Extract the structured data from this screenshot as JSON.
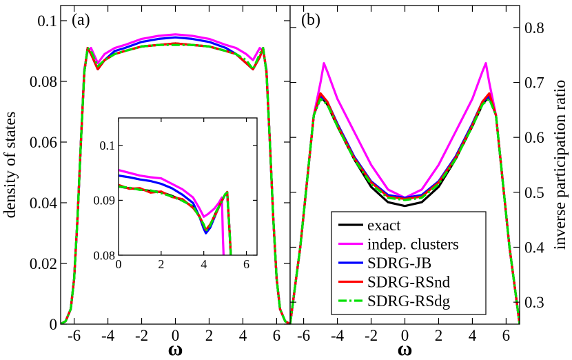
{
  "chart_data": [
    {
      "panel": "(a)",
      "type": "line",
      "xlabel": "ω",
      "ylabel": "density of states",
      "xlim": [
        -6.8,
        6.8
      ],
      "ylim": [
        0,
        0.105
      ],
      "xticks": [
        -6,
        -4,
        -2,
        0,
        2,
        4,
        6
      ],
      "xtick_labels": [
        "-6",
        "-4",
        "-2",
        "0",
        "2",
        "4",
        "6"
      ],
      "yticks": [
        0,
        0.02,
        0.04,
        0.06,
        0.08,
        0.1
      ],
      "ytick_labels": [
        "0",
        "0.02",
        "0.04",
        "0.06",
        "0.08",
        "0.1"
      ],
      "legend": "none",
      "series": [
        {
          "name": "exact",
          "color": "#000000",
          "dash": "solid",
          "x": [
            -6.8,
            -6.5,
            -6.2,
            -6.0,
            -5.8,
            -5.6,
            -5.4,
            -5.2,
            -5.0,
            -4.6,
            -4.2,
            -3.6,
            -3.0,
            -2.0,
            -1.0,
            0,
            1.0,
            2.0,
            3.0,
            3.6,
            4.2,
            4.6,
            5.0,
            5.2,
            5.4,
            5.6,
            5.8,
            6.0,
            6.2,
            6.5,
            6.8
          ],
          "y": [
            0,
            0.001,
            0.005,
            0.015,
            0.035,
            0.06,
            0.083,
            0.091,
            0.089,
            0.084,
            0.087,
            0.089,
            0.09,
            0.0915,
            0.092,
            0.0925,
            0.092,
            0.0915,
            0.09,
            0.089,
            0.086,
            0.084,
            0.088,
            0.091,
            0.083,
            0.06,
            0.035,
            0.015,
            0.005,
            0.001,
            0
          ]
        },
        {
          "name": "indep. clusters",
          "color": "#ff00ff",
          "dash": "solid",
          "x": [
            -6.8,
            -6.5,
            -6.2,
            -6.0,
            -5.8,
            -5.6,
            -5.4,
            -5.2,
            -5.0,
            -4.6,
            -4.2,
            -3.6,
            -3.0,
            -2.0,
            -1.0,
            0,
            1.0,
            2.0,
            3.0,
            3.6,
            4.2,
            4.6,
            5.0,
            5.2,
            5.4,
            5.6,
            5.8,
            6.0,
            6.2,
            6.5,
            6.8
          ],
          "y": [
            0,
            0.001,
            0.005,
            0.015,
            0.035,
            0.06,
            0.084,
            0.09,
            0.091,
            0.086,
            0.089,
            0.091,
            0.092,
            0.094,
            0.095,
            0.0955,
            0.095,
            0.094,
            0.092,
            0.091,
            0.089,
            0.087,
            0.091,
            0.09,
            0.084,
            0.06,
            0.035,
            0.015,
            0.005,
            0.001,
            0
          ]
        },
        {
          "name": "SDRG-JB",
          "color": "#0000ff",
          "dash": "solid",
          "x": [
            -6.8,
            -6.5,
            -6.2,
            -6.0,
            -5.8,
            -5.6,
            -5.4,
            -5.2,
            -5.0,
            -4.6,
            -4.2,
            -3.6,
            -3.0,
            -2.0,
            -1.0,
            0,
            1.0,
            2.0,
            3.0,
            3.6,
            4.2,
            4.6,
            5.0,
            5.2,
            5.4,
            5.6,
            5.8,
            6.0,
            6.2,
            6.5,
            6.8
          ],
          "y": [
            0,
            0.001,
            0.005,
            0.015,
            0.035,
            0.06,
            0.083,
            0.091,
            0.089,
            0.084,
            0.087,
            0.09,
            0.091,
            0.093,
            0.094,
            0.0945,
            0.094,
            0.093,
            0.091,
            0.089,
            0.086,
            0.084,
            0.088,
            0.091,
            0.083,
            0.06,
            0.035,
            0.015,
            0.005,
            0.001,
            0
          ]
        },
        {
          "name": "SDRG-RSnd",
          "color": "#ff0000",
          "dash": "solid",
          "x": [
            -6.8,
            -6.5,
            -6.2,
            -6.0,
            -5.8,
            -5.6,
            -5.4,
            -5.2,
            -5.0,
            -4.6,
            -4.2,
            -3.6,
            -3.0,
            -2.0,
            -1.0,
            0,
            1.0,
            2.0,
            3.0,
            3.6,
            4.2,
            4.6,
            5.0,
            5.2,
            5.4,
            5.6,
            5.8,
            6.0,
            6.2,
            6.5,
            6.8
          ],
          "y": [
            0,
            0.001,
            0.005,
            0.015,
            0.035,
            0.06,
            0.083,
            0.091,
            0.089,
            0.084,
            0.087,
            0.089,
            0.09,
            0.0915,
            0.092,
            0.0925,
            0.092,
            0.0915,
            0.09,
            0.089,
            0.086,
            0.084,
            0.088,
            0.091,
            0.083,
            0.06,
            0.035,
            0.015,
            0.005,
            0.001,
            0
          ]
        },
        {
          "name": "SDRG-RSdg",
          "color": "#00e000",
          "dash": "dashdot",
          "x": [
            -6.8,
            -6.5,
            -6.2,
            -6.0,
            -5.8,
            -5.6,
            -5.4,
            -5.2,
            -5.0,
            -4.6,
            -4.2,
            -3.6,
            -3.0,
            -2.0,
            -1.0,
            0,
            1.0,
            2.0,
            3.0,
            3.6,
            4.2,
            4.6,
            5.0,
            5.2,
            5.4,
            5.6,
            5.8,
            6.0,
            6.2,
            6.5,
            6.8
          ],
          "y": [
            0,
            0.001,
            0.005,
            0.015,
            0.035,
            0.06,
            0.083,
            0.091,
            0.09,
            0.085,
            0.087,
            0.089,
            0.09,
            0.0915,
            0.092,
            0.092,
            0.092,
            0.0915,
            0.09,
            0.089,
            0.087,
            0.084,
            0.089,
            0.091,
            0.083,
            0.06,
            0.035,
            0.015,
            0.005,
            0.001,
            0
          ]
        }
      ]
    },
    {
      "panel": "inset",
      "type": "line",
      "xlabel": "",
      "ylabel": "",
      "xlim": [
        0,
        6.5
      ],
      "ylim": [
        0.08,
        0.105
      ],
      "xticks": [
        0,
        2,
        4,
        6
      ],
      "xtick_labels": [
        "0",
        "2",
        "4",
        "6"
      ],
      "yticks": [
        0.08,
        0.09,
        0.1
      ],
      "ytick_labels": [
        "0.08",
        "0.09",
        "0.1"
      ],
      "series": [
        {
          "name": "exact",
          "color": "#000000",
          "dash": "solid",
          "x": [
            0,
            0.5,
            1.0,
            1.5,
            2.0,
            2.5,
            3.0,
            3.5,
            3.8,
            4.0,
            4.1,
            4.3,
            4.6,
            4.8,
            5.0,
            5.1,
            5.2,
            5.3
          ],
          "y": [
            0.0925,
            0.0922,
            0.092,
            0.0917,
            0.0915,
            0.0908,
            0.09,
            0.0888,
            0.087,
            0.0855,
            0.0845,
            0.0855,
            0.088,
            0.0895,
            0.091,
            0.0915,
            0.085,
            0.0778
          ]
        },
        {
          "name": "indep. clusters",
          "color": "#ff00ff",
          "dash": "solid",
          "x": [
            0,
            0.5,
            1.0,
            1.5,
            2.0,
            2.5,
            3.0,
            3.5,
            3.8,
            4.0,
            4.2,
            4.5,
            4.7,
            4.85,
            4.9,
            4.95
          ],
          "y": [
            0.0955,
            0.095,
            0.0945,
            0.0942,
            0.094,
            0.093,
            0.092,
            0.0905,
            0.0885,
            0.087,
            0.0875,
            0.0885,
            0.0895,
            0.0905,
            0.083,
            0.0778
          ]
        },
        {
          "name": "SDRG-JB",
          "color": "#0000ff",
          "dash": "solid",
          "x": [
            0,
            0.5,
            1.0,
            1.5,
            2.0,
            2.5,
            3.0,
            3.5,
            3.8,
            4.0,
            4.1,
            4.3,
            4.6,
            4.8,
            5.0,
            5.1,
            5.2,
            5.3
          ],
          "y": [
            0.0945,
            0.0942,
            0.0938,
            0.0935,
            0.093,
            0.0922,
            0.091,
            0.0895,
            0.087,
            0.0848,
            0.084,
            0.085,
            0.0878,
            0.0895,
            0.091,
            0.0912,
            0.085,
            0.0778
          ]
        },
        {
          "name": "SDRG-RSnd",
          "color": "#ff0000",
          "dash": "solid",
          "x": [
            0,
            0.5,
            1.0,
            1.5,
            2.0,
            2.5,
            3.0,
            3.5,
            3.8,
            4.0,
            4.1,
            4.3,
            4.6,
            4.8,
            5.0,
            5.1,
            5.2,
            5.3
          ],
          "y": [
            0.0928,
            0.0921,
            0.0922,
            0.0914,
            0.0916,
            0.0906,
            0.0902,
            0.0886,
            0.0871,
            0.0854,
            0.0846,
            0.0856,
            0.0878,
            0.0896,
            0.091,
            0.0915,
            0.085,
            0.0778
          ]
        },
        {
          "name": "SDRG-RSdg",
          "color": "#00e000",
          "dash": "dashdot",
          "x": [
            0,
            0.5,
            1.0,
            1.5,
            2.0,
            2.5,
            3.0,
            3.5,
            3.8,
            4.0,
            4.1,
            4.3,
            4.6,
            4.8,
            5.0,
            5.1,
            5.2,
            5.3
          ],
          "y": [
            0.0925,
            0.0923,
            0.0919,
            0.0918,
            0.0913,
            0.0907,
            0.0899,
            0.0889,
            0.0869,
            0.0856,
            0.0844,
            0.0854,
            0.0881,
            0.0894,
            0.0911,
            0.0914,
            0.085,
            0.0778
          ]
        }
      ]
    },
    {
      "panel": "(b)",
      "type": "line",
      "xlabel": "ω",
      "ylabel": "inverse participation ratio",
      "xlim": [
        -6.8,
        6.8
      ],
      "ylim": [
        0.26,
        0.84
      ],
      "xticks": [
        -6,
        -4,
        -2,
        0,
        2,
        4,
        6
      ],
      "xtick_labels": [
        "-6",
        "-4",
        "-2",
        "0",
        "2",
        "4",
        "6"
      ],
      "yticks": [
        0.3,
        0.4,
        0.5,
        0.6,
        0.7,
        0.8
      ],
      "ytick_labels": [
        "0.3",
        "0.4",
        "0.5",
        "0.6",
        "0.7",
        "0.8"
      ],
      "legend": "bottom-right",
      "series": [
        {
          "name": "exact",
          "color": "#000000",
          "dash": "solid",
          "x": [
            -6.8,
            -6.5,
            -6.2,
            -5.8,
            -5.4,
            -5.0,
            -4.6,
            -4.0,
            -3.0,
            -2.0,
            -1.0,
            0,
            1.0,
            2.0,
            3.0,
            4.0,
            4.6,
            5.0,
            5.4,
            5.8,
            6.2,
            6.5,
            6.8
          ],
          "y": [
            0.26,
            0.33,
            0.4,
            0.52,
            0.64,
            0.675,
            0.66,
            0.62,
            0.56,
            0.51,
            0.482,
            0.475,
            0.482,
            0.51,
            0.56,
            0.62,
            0.66,
            0.675,
            0.64,
            0.52,
            0.4,
            0.33,
            0.26
          ]
        },
        {
          "name": "indep. clusters",
          "color": "#ff00ff",
          "dash": "solid",
          "x": [
            -6.8,
            -6.5,
            -6.2,
            -5.8,
            -5.4,
            -5.0,
            -4.8,
            -4.6,
            -4.0,
            -3.0,
            -2.0,
            -1.0,
            0,
            1.0,
            2.0,
            3.0,
            4.0,
            4.6,
            4.8,
            5.0,
            5.4,
            5.8,
            6.2,
            6.5,
            6.8
          ],
          "y": [
            0.26,
            0.33,
            0.4,
            0.52,
            0.64,
            0.7,
            0.735,
            0.72,
            0.67,
            0.61,
            0.55,
            0.505,
            0.49,
            0.505,
            0.55,
            0.61,
            0.67,
            0.72,
            0.735,
            0.7,
            0.64,
            0.52,
            0.4,
            0.33,
            0.26
          ]
        },
        {
          "name": "SDRG-JB",
          "color": "#0000ff",
          "dash": "solid",
          "x": [
            -6.8,
            -6.5,
            -6.2,
            -5.8,
            -5.4,
            -5.0,
            -4.6,
            -4.0,
            -3.0,
            -2.0,
            -1.0,
            0,
            1.0,
            2.0,
            3.0,
            4.0,
            4.6,
            5.0,
            5.4,
            5.8,
            6.2,
            6.5,
            6.8
          ],
          "y": [
            0.26,
            0.33,
            0.4,
            0.52,
            0.64,
            0.675,
            0.665,
            0.625,
            0.565,
            0.52,
            0.495,
            0.49,
            0.495,
            0.52,
            0.565,
            0.625,
            0.665,
            0.675,
            0.64,
            0.52,
            0.4,
            0.33,
            0.26
          ]
        },
        {
          "name": "SDRG-RSnd",
          "color": "#ff0000",
          "dash": "solid",
          "x": [
            -6.8,
            -6.5,
            -6.2,
            -5.8,
            -5.4,
            -5.0,
            -4.6,
            -4.0,
            -3.0,
            -2.0,
            -1.0,
            0,
            1.0,
            2.0,
            3.0,
            4.0,
            4.6,
            5.0,
            5.4,
            5.8,
            6.2,
            6.5,
            6.8
          ],
          "y": [
            0.26,
            0.33,
            0.4,
            0.52,
            0.64,
            0.68,
            0.665,
            0.622,
            0.562,
            0.518,
            0.492,
            0.488,
            0.492,
            0.518,
            0.562,
            0.622,
            0.665,
            0.68,
            0.64,
            0.52,
            0.4,
            0.33,
            0.26
          ]
        },
        {
          "name": "SDRG-RSdg",
          "color": "#00e000",
          "dash": "dashdot",
          "x": [
            -6.8,
            -6.5,
            -6.2,
            -5.8,
            -5.4,
            -5.0,
            -4.6,
            -4.0,
            -3.0,
            -2.0,
            -1.0,
            0,
            1.0,
            2.0,
            3.0,
            4.0,
            4.6,
            5.0,
            5.4,
            5.8,
            6.2,
            6.5,
            6.8
          ],
          "y": [
            0.26,
            0.33,
            0.4,
            0.52,
            0.64,
            0.67,
            0.66,
            0.62,
            0.56,
            0.515,
            0.49,
            0.486,
            0.49,
            0.515,
            0.56,
            0.62,
            0.66,
            0.67,
            0.64,
            0.52,
            0.4,
            0.33,
            0.26
          ]
        }
      ]
    }
  ],
  "legend": {
    "entries": [
      {
        "label": "exact",
        "color": "#000000",
        "dash": "solid"
      },
      {
        "label": "indep. clusters",
        "color": "#ff00ff",
        "dash": "solid"
      },
      {
        "label": "SDRG-JB",
        "color": "#0000ff",
        "dash": "solid"
      },
      {
        "label": "SDRG-RSnd",
        "color": "#ff0000",
        "dash": "solid"
      },
      {
        "label": "SDRG-RSdg",
        "color": "#00e000",
        "dash": "dashdot"
      }
    ]
  }
}
